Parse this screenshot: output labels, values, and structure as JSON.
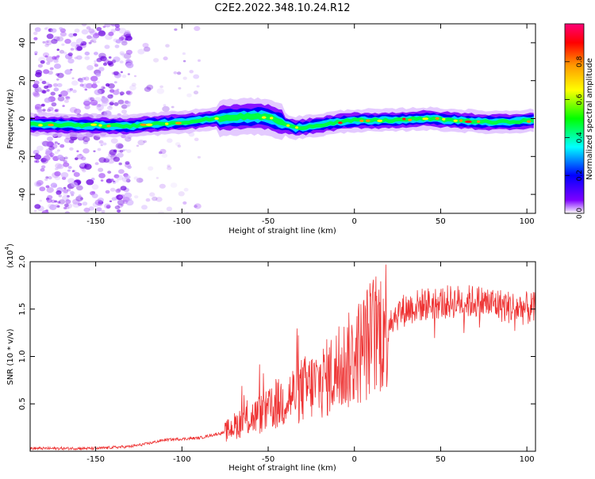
{
  "title": "C2E2.2022.348.10.24.R12",
  "chart_data": [
    {
      "type": "heatmap",
      "xlabel": "Height of straight line (km)",
      "ylabel": "Frequency (Hz)",
      "xlim": [
        -188,
        105
      ],
      "ylim": [
        -50,
        50
      ],
      "xticks": [
        -150,
        -100,
        -50,
        0,
        50,
        100
      ],
      "yticks": [
        -40,
        -20,
        0,
        20,
        40
      ],
      "colorbar": {
        "label": "Normalized spectral amplitude",
        "range": [
          0,
          1
        ],
        "ticks": [
          "0.0",
          "0.2",
          "0.4",
          "0.6",
          "0.8"
        ],
        "colormap": [
          "#ffffff",
          "#7d00ff",
          "#0000ff",
          "#00ffff",
          "#00ff00",
          "#ffff00",
          "#ff9900",
          "#ff0000",
          "#ff0077"
        ]
      },
      "ridge": {
        "x": [
          -188,
          -130,
          -120,
          -100,
          -80,
          -65,
          -50,
          -40,
          -35,
          -25,
          -10,
          0,
          20,
          40,
          60,
          80,
          105
        ],
        "y": [
          -3,
          -4,
          -3,
          -2,
          0,
          1,
          1,
          -3,
          -5,
          -4,
          -2,
          -1,
          -1,
          0,
          -1,
          -2,
          -1
        ]
      }
    },
    {
      "type": "line",
      "xlabel": "Height of straight line (km)",
      "ylabel": "SNR (10 * v/v)",
      "scale_note": "(x10",
      "scale_exp": "4",
      "xlim": [
        -188,
        105
      ],
      "ylim": [
        0,
        2.0
      ],
      "xticks": [
        -150,
        -100,
        -50,
        0,
        50,
        100
      ],
      "yticks": [
        "0.5",
        "1.0",
        "1.5",
        "2.0"
      ],
      "color": "#ee3333",
      "trend": {
        "x": [
          -188,
          -150,
          -130,
          -120,
          -110,
          -90,
          -75,
          -65,
          -50,
          -40,
          -30,
          -20,
          -10,
          0,
          10,
          20,
          30,
          40,
          50,
          60,
          70,
          80,
          90,
          105
        ],
        "y": [
          0.03,
          0.03,
          0.05,
          0.08,
          0.12,
          0.14,
          0.2,
          0.32,
          0.42,
          0.55,
          0.65,
          0.72,
          0.85,
          1.0,
          1.2,
          1.4,
          1.5,
          1.55,
          1.57,
          1.58,
          1.58,
          1.56,
          1.52,
          1.5
        ]
      }
    }
  ]
}
